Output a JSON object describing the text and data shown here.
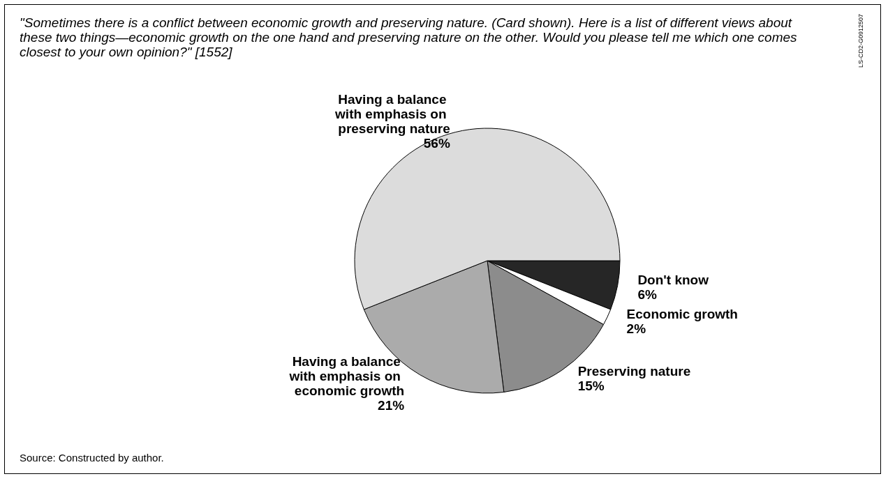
{
  "chart_data": {
    "type": "pie",
    "title": "\"Sometimes there is a conflict between economic growth and preserving nature. (Card shown). Here is a list of different views about these two things—economic growth on the one hand and preserving nature on the other. Would you please tell me which one comes closest to your own opinion?\" [1552]",
    "categories": [
      "Don't know",
      "Economic growth",
      "Preserving nature",
      "Having a balance with emphasis on economic growth",
      "Having a balance with emphasis on preserving nature"
    ],
    "values": [
      6,
      2,
      15,
      21,
      56
    ],
    "colors": [
      "#262626",
      "#ffffff",
      "#8c8c8c",
      "#ababab",
      "#dcdcdc"
    ],
    "value_labels": [
      "6%",
      "2%",
      "15%",
      "21%",
      "56%"
    ],
    "legend": false,
    "annotations": [
      "Source: Constructed by author.",
      "LS-CD2-G0912507"
    ]
  }
}
